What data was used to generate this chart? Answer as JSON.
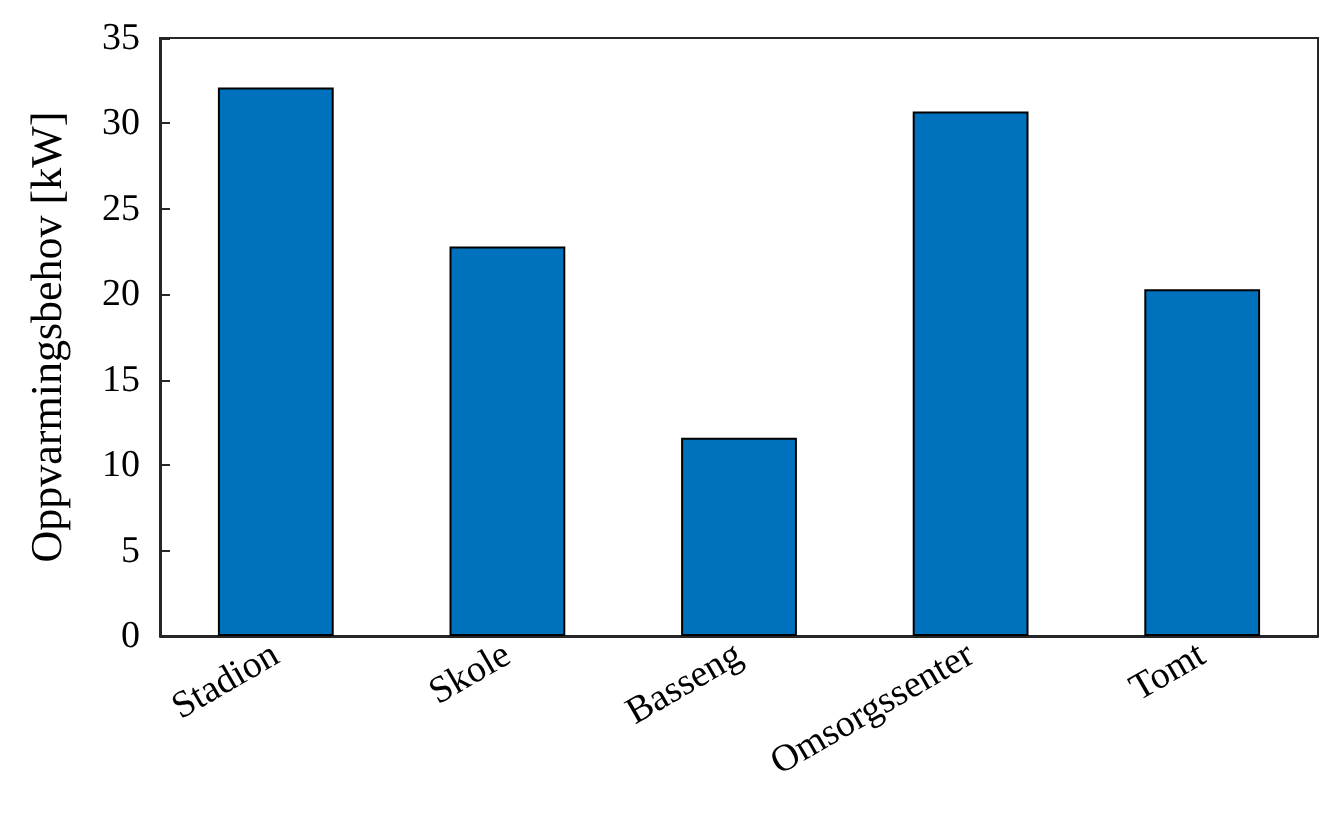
{
  "chart_data": {
    "type": "bar",
    "ylabel": "Oppvarmingsbehov [kW]",
    "categories": [
      "Stadion",
      "Skole",
      "Basseng",
      "Omsorgssenter",
      "Tomt"
    ],
    "values": [
      32.1,
      22.8,
      11.6,
      30.7,
      20.3
    ],
    "color": "#0072bd",
    "ylim": [
      0,
      35
    ],
    "yticks": [
      0,
      5,
      10,
      15,
      20,
      25,
      30,
      35
    ],
    "grid": false
  }
}
